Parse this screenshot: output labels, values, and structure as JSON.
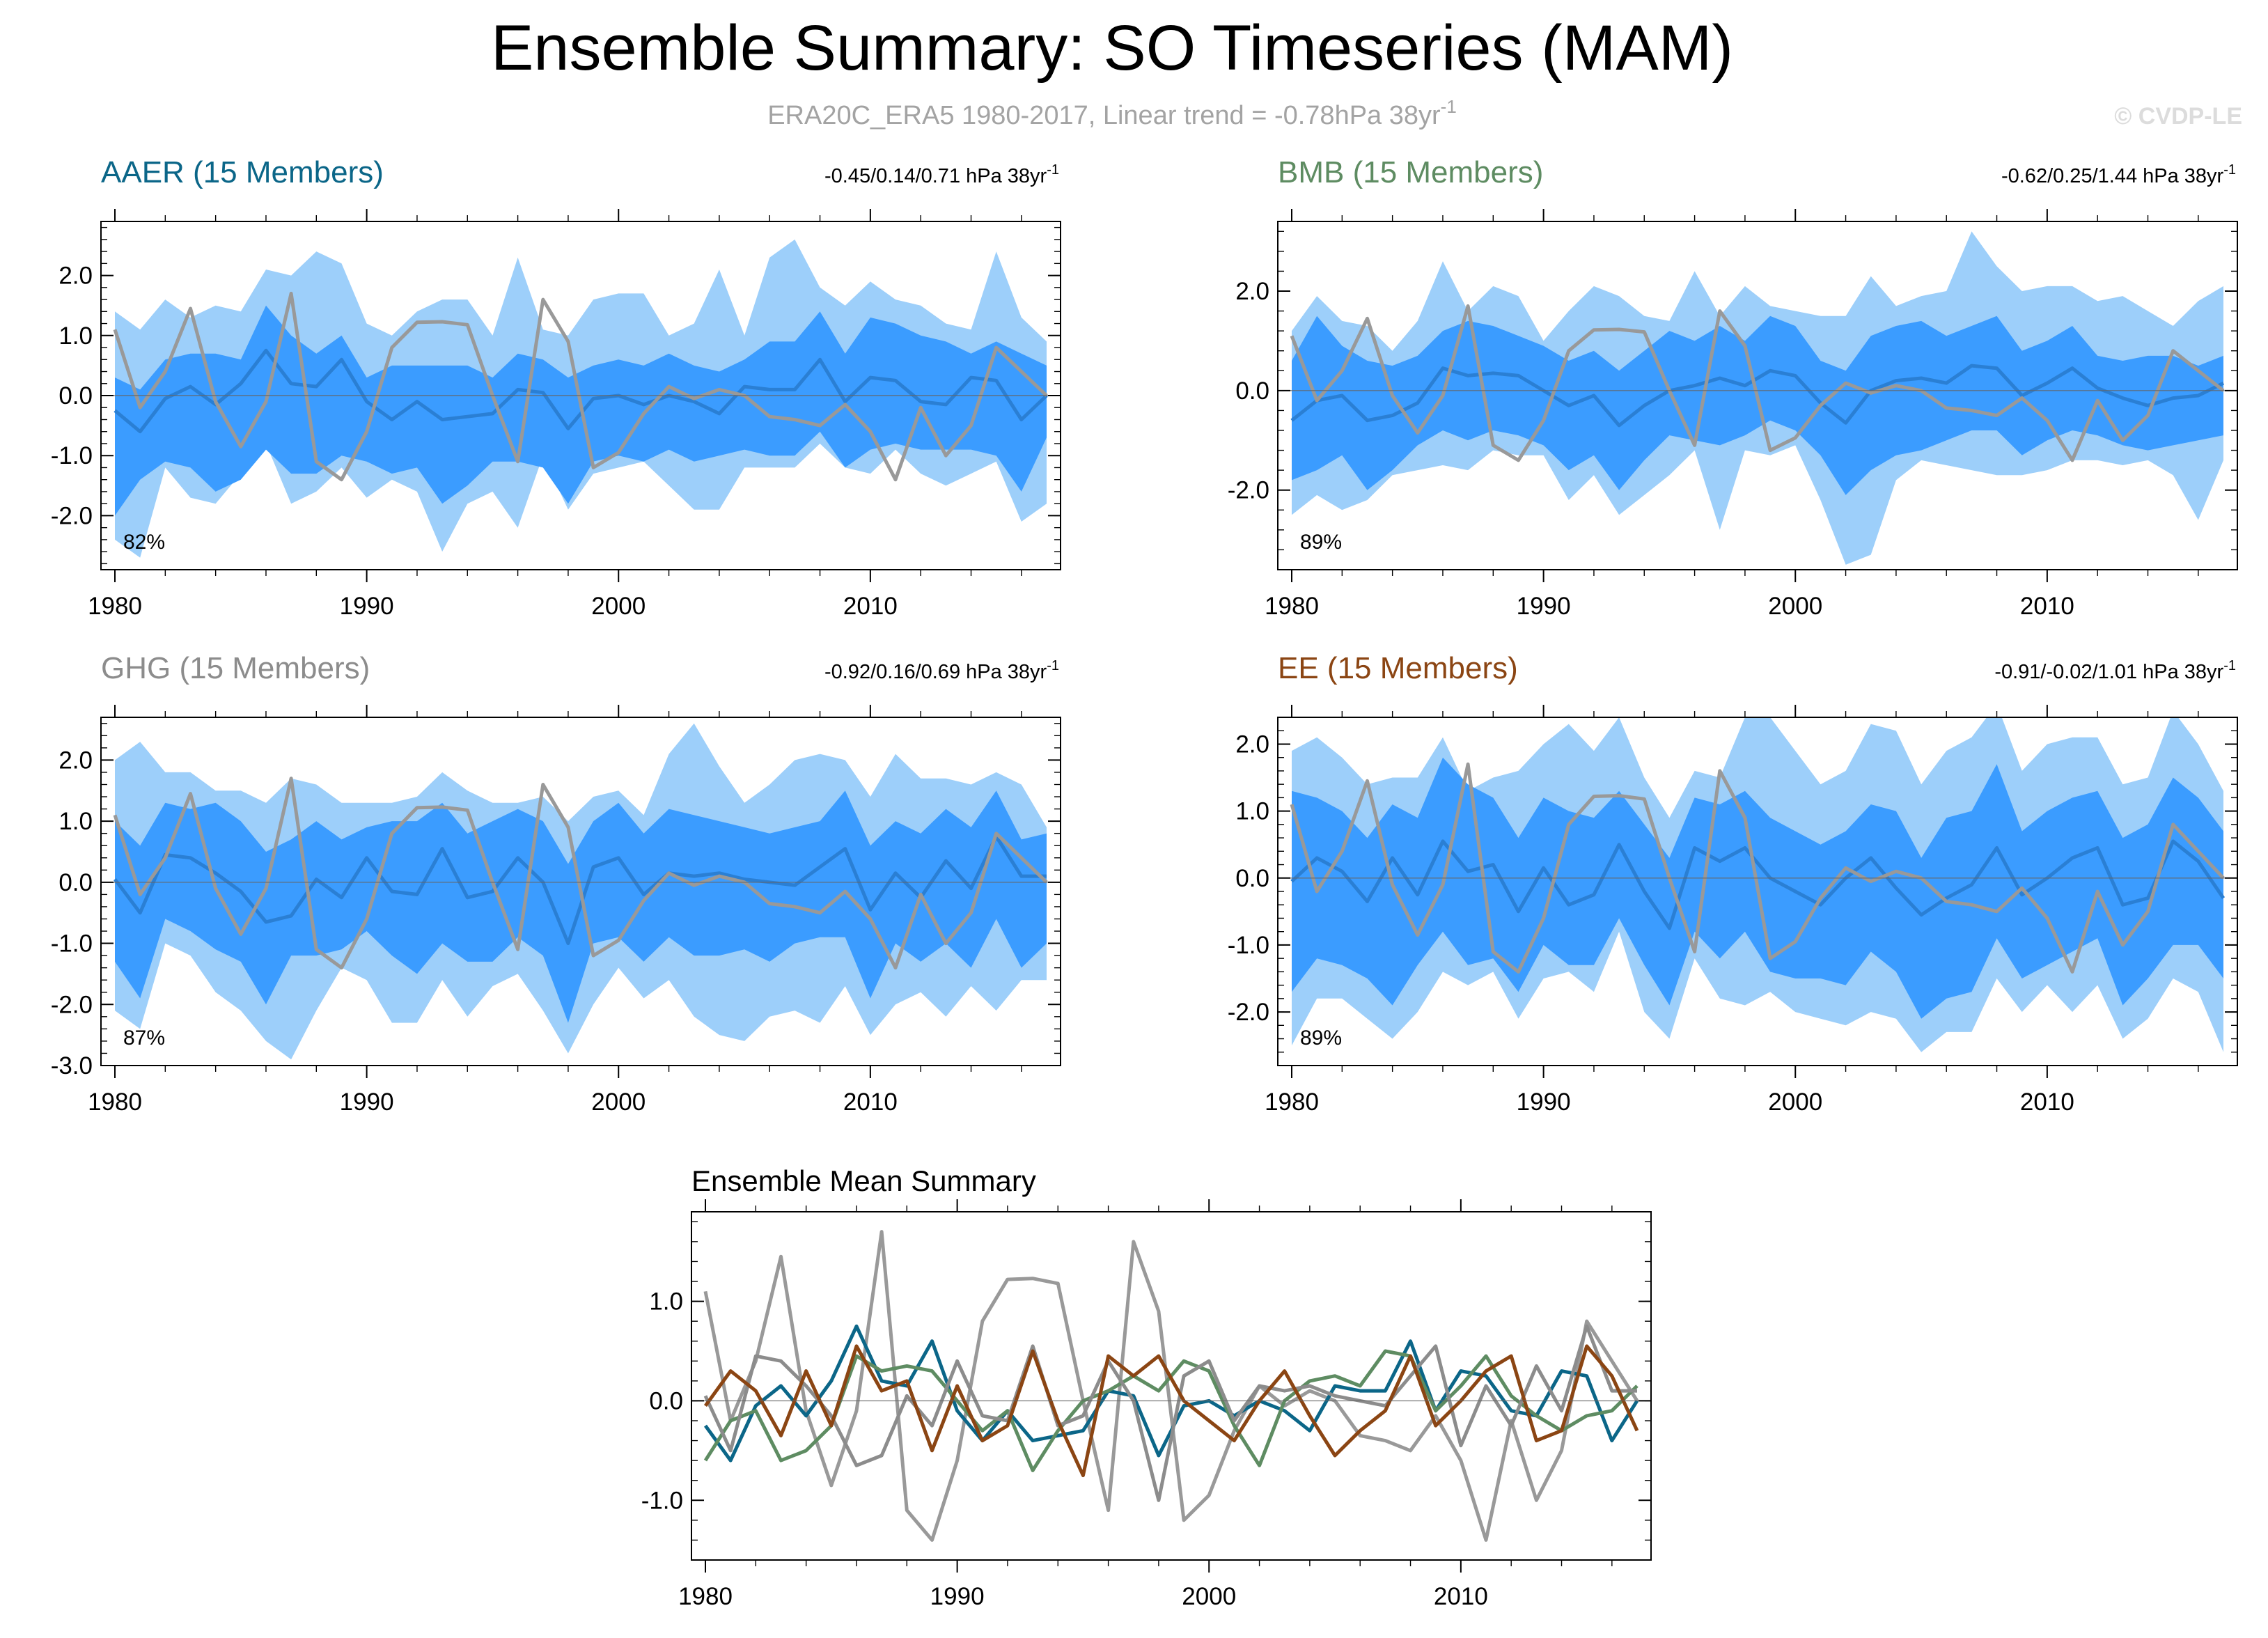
{
  "title": "Ensemble Summary: SO Timeseries (MAM)",
  "subtitle": {
    "text": "ERA20C_ERA5 1980-2017, Linear trend = -0.78hPa 38yr",
    "superscript": "-1"
  },
  "watermark": "© CVDP-LE",
  "colors": {
    "outer_band": "#9dcffa",
    "inner_band": "#3b9cff",
    "ens_mean_line": "#2a7fd4",
    "obs_line": "#999999",
    "AAER": "#0b6688",
    "BMB": "#5e8c62",
    "GHG": "#8c8c8c",
    "EE": "#8b4513"
  },
  "years": [
    1980,
    1981,
    1982,
    1983,
    1984,
    1985,
    1986,
    1987,
    1988,
    1989,
    1990,
    1991,
    1992,
    1993,
    1994,
    1995,
    1996,
    1997,
    1998,
    1999,
    2000,
    2001,
    2002,
    2003,
    2004,
    2005,
    2006,
    2007,
    2008,
    2009,
    2010,
    2011,
    2012,
    2013,
    2014,
    2015,
    2016,
    2017
  ],
  "observed": [
    1.1,
    -0.2,
    0.4,
    1.45,
    -0.1,
    -0.85,
    -0.1,
    1.7,
    -1.1,
    -1.4,
    -0.6,
    0.8,
    1.22,
    1.23,
    1.18,
    0.0,
    -1.1,
    1.6,
    0.9,
    -1.2,
    -0.95,
    -0.3,
    0.15,
    -0.05,
    0.1,
    0.0,
    -0.35,
    -0.4,
    -0.5,
    -0.15,
    -0.6,
    -1.4,
    -0.2,
    -1.0,
    -0.5,
    0.8,
    0.4,
    0.0
  ],
  "panels": [
    {
      "id": "AAER",
      "label": "AAER (15 Members)",
      "stats_text": "-0.45/0.14/0.71 hPa 38yr",
      "stats_sup": "-1",
      "percent": "82%",
      "ylim": [
        -2.9,
        2.9
      ],
      "yticks": [
        2.0,
        1.0,
        0.0,
        -1.0,
        -2.0
      ],
      "ytick_labels": [
        "2.0",
        "1.0",
        "0.0",
        "-1.0",
        "-2.0"
      ],
      "mean": [
        -0.25,
        -0.6,
        -0.05,
        0.15,
        -0.15,
        0.2,
        0.75,
        0.2,
        0.15,
        0.6,
        -0.1,
        -0.4,
        -0.1,
        -0.4,
        -0.35,
        -0.3,
        0.1,
        0.05,
        -0.55,
        -0.05,
        0.0,
        -0.15,
        0.0,
        -0.1,
        -0.3,
        0.15,
        0.1,
        0.1,
        0.6,
        -0.1,
        0.3,
        0.25,
        -0.1,
        -0.15,
        0.3,
        0.25,
        -0.4,
        0.0
      ],
      "p10": [
        -2.0,
        -1.4,
        -1.1,
        -1.2,
        -1.6,
        -1.4,
        -0.9,
        -1.3,
        -1.3,
        -1.0,
        -1.1,
        -1.3,
        -1.2,
        -1.8,
        -1.5,
        -1.1,
        -1.1,
        -1.2,
        -1.8,
        -1.1,
        -1.0,
        -1.1,
        -0.9,
        -1.1,
        -1.0,
        -0.9,
        -1.0,
        -1.0,
        -0.6,
        -1.2,
        -0.9,
        -0.8,
        -0.9,
        -0.9,
        -0.9,
        -1.0,
        -1.6,
        -0.7
      ],
      "p90": [
        0.3,
        0.1,
        0.6,
        0.7,
        0.7,
        0.6,
        1.5,
        1.0,
        0.7,
        1.0,
        0.3,
        0.5,
        0.5,
        0.5,
        0.5,
        0.3,
        0.7,
        0.6,
        0.3,
        0.5,
        0.6,
        0.5,
        0.7,
        0.5,
        0.4,
        0.6,
        0.9,
        0.9,
        1.4,
        0.7,
        1.3,
        1.2,
        1.0,
        0.9,
        0.7,
        0.9,
        0.7,
        0.5
      ],
      "min": [
        -2.4,
        -2.7,
        -1.2,
        -1.7,
        -1.8,
        -1.3,
        -0.8,
        -1.8,
        -1.6,
        -1.2,
        -1.7,
        -1.4,
        -1.6,
        -2.6,
        -1.8,
        -1.6,
        -2.2,
        -1.0,
        -1.9,
        -1.3,
        -1.2,
        -1.1,
        -1.5,
        -1.9,
        -1.9,
        -1.2,
        -1.2,
        -1.2,
        -0.8,
        -1.2,
        -1.3,
        -0.9,
        -1.3,
        -1.5,
        -1.3,
        -1.1,
        -2.1,
        -1.8
      ],
      "max": [
        1.4,
        1.1,
        1.6,
        1.3,
        1.5,
        1.4,
        2.1,
        2.0,
        2.4,
        2.2,
        1.2,
        1.0,
        1.4,
        1.6,
        1.6,
        1.0,
        2.3,
        1.1,
        1.0,
        1.6,
        1.7,
        1.7,
        1.0,
        1.2,
        2.1,
        1.0,
        2.3,
        2.6,
        1.8,
        1.5,
        1.9,
        1.6,
        1.5,
        1.2,
        1.1,
        2.4,
        1.3,
        0.9
      ]
    },
    {
      "id": "BMB",
      "label": "BMB (15 Members)",
      "stats_text": "-0.62/0.25/1.44 hPa 38yr",
      "stats_sup": "-1",
      "percent": "89%",
      "ylim": [
        -3.6,
        3.4
      ],
      "yticks": [
        2.0,
        0.0,
        -2.0
      ],
      "ytick_labels": [
        "2.0",
        "0.0",
        "-2.0"
      ],
      "mean": [
        -0.6,
        -0.2,
        -0.1,
        -0.6,
        -0.5,
        -0.25,
        0.45,
        0.3,
        0.35,
        0.3,
        0.0,
        -0.3,
        -0.1,
        -0.7,
        -0.3,
        0.0,
        0.1,
        0.25,
        0.1,
        0.4,
        0.3,
        -0.25,
        -0.65,
        0.0,
        0.2,
        0.25,
        0.15,
        0.5,
        0.45,
        -0.1,
        0.15,
        0.45,
        0.05,
        -0.15,
        -0.3,
        -0.15,
        -0.1,
        0.15
      ],
      "p10": [
        -1.8,
        -1.6,
        -1.3,
        -2.0,
        -1.6,
        -1.1,
        -0.8,
        -1.0,
        -0.8,
        -0.9,
        -1.1,
        -1.6,
        -1.3,
        -2.0,
        -1.4,
        -0.9,
        -1.0,
        -1.1,
        -0.9,
        -0.6,
        -0.8,
        -1.3,
        -2.1,
        -1.6,
        -1.3,
        -1.2,
        -1.0,
        -0.8,
        -0.8,
        -1.3,
        -1.0,
        -0.8,
        -0.9,
        -1.1,
        -1.2,
        -1.1,
        -1.0,
        -0.9
      ],
      "p90": [
        0.6,
        1.5,
        0.9,
        0.6,
        0.5,
        0.7,
        1.2,
        1.4,
        1.3,
        1.1,
        0.9,
        0.6,
        0.8,
        0.4,
        0.8,
        1.2,
        1.0,
        1.3,
        1.0,
        1.5,
        1.3,
        0.6,
        0.4,
        1.1,
        1.3,
        1.4,
        1.1,
        1.3,
        1.5,
        0.8,
        1.0,
        1.3,
        0.7,
        0.6,
        0.7,
        0.7,
        0.5,
        0.7
      ],
      "min": [
        -2.5,
        -2.1,
        -2.4,
        -2.2,
        -1.7,
        -1.6,
        -1.5,
        -1.6,
        -1.2,
        -1.3,
        -1.3,
        -2.2,
        -1.7,
        -2.5,
        -2.1,
        -1.7,
        -1.2,
        -2.8,
        -1.2,
        -1.3,
        -1.1,
        -2.2,
        -3.5,
        -3.3,
        -1.8,
        -1.4,
        -1.5,
        -1.6,
        -1.7,
        -1.7,
        -1.6,
        -1.4,
        -1.4,
        -1.5,
        -1.4,
        -1.7,
        -2.6,
        -1.4
      ],
      "max": [
        1.2,
        1.9,
        1.4,
        1.3,
        0.8,
        1.4,
        2.6,
        1.6,
        2.1,
        1.9,
        1.0,
        1.6,
        2.1,
        1.9,
        1.5,
        1.4,
        2.4,
        1.5,
        2.1,
        1.7,
        1.6,
        1.5,
        1.5,
        2.3,
        1.7,
        1.9,
        2.0,
        3.2,
        2.5,
        2.0,
        2.1,
        2.1,
        1.8,
        1.9,
        1.6,
        1.3,
        1.8,
        2.1
      ]
    },
    {
      "id": "GHG",
      "label": "GHG (15 Members)",
      "stats_text": "-0.92/0.16/0.69 hPa 38yr",
      "stats_sup": "-1",
      "percent": "87%",
      "ylim": [
        -3.0,
        2.7
      ],
      "yticks": [
        2.0,
        1.0,
        0.0,
        -1.0,
        -2.0,
        -3.0
      ],
      "ytick_labels": [
        "2.0",
        "1.0",
        "0.0",
        "-1.0",
        "-2.0",
        "-3.0"
      ],
      "mean": [
        0.05,
        -0.5,
        0.45,
        0.4,
        0.15,
        -0.15,
        -0.65,
        -0.55,
        0.05,
        -0.25,
        0.4,
        -0.15,
        -0.2,
        0.55,
        -0.25,
        -0.15,
        0.4,
        0.0,
        -1.0,
        0.25,
        0.4,
        -0.2,
        0.15,
        0.1,
        0.15,
        0.05,
        0.0,
        -0.05,
        0.25,
        0.55,
        -0.45,
        0.15,
        -0.25,
        0.35,
        -0.1,
        0.75,
        0.1,
        0.1
      ],
      "p10": [
        -1.3,
        -1.9,
        -0.6,
        -0.8,
        -1.1,
        -1.3,
        -2.0,
        -1.2,
        -1.2,
        -1.1,
        -0.8,
        -1.2,
        -1.5,
        -1.0,
        -1.3,
        -1.3,
        -0.9,
        -1.2,
        -2.3,
        -1.0,
        -0.9,
        -1.3,
        -0.9,
        -1.2,
        -1.2,
        -1.1,
        -1.3,
        -1.0,
        -0.9,
        -0.9,
        -1.9,
        -1.0,
        -1.3,
        -1.0,
        -1.4,
        -0.6,
        -1.4,
        -1.0
      ],
      "p90": [
        1.0,
        0.6,
        1.3,
        1.2,
        1.3,
        1.0,
        0.5,
        0.7,
        1.0,
        0.7,
        0.9,
        1.0,
        1.0,
        1.3,
        0.8,
        1.0,
        1.2,
        1.0,
        0.3,
        1.0,
        1.3,
        0.8,
        1.2,
        1.1,
        1.0,
        0.9,
        0.8,
        0.9,
        1.0,
        1.5,
        0.6,
        1.0,
        0.8,
        1.2,
        0.9,
        1.5,
        0.7,
        0.8
      ],
      "min": [
        -2.1,
        -2.4,
        -1.0,
        -1.2,
        -1.8,
        -2.1,
        -2.6,
        -2.9,
        -2.1,
        -1.4,
        -1.6,
        -2.3,
        -2.3,
        -1.6,
        -2.2,
        -1.7,
        -1.5,
        -2.1,
        -2.8,
        -2.0,
        -1.4,
        -1.9,
        -1.6,
        -2.2,
        -2.5,
        -2.6,
        -2.2,
        -2.1,
        -2.3,
        -1.7,
        -2.5,
        -2.0,
        -1.8,
        -2.2,
        -1.7,
        -2.1,
        -1.6,
        -1.6
      ],
      "max": [
        2.0,
        2.3,
        1.8,
        1.8,
        1.5,
        1.5,
        1.3,
        1.7,
        1.6,
        1.3,
        1.3,
        1.3,
        1.4,
        1.8,
        1.5,
        1.3,
        1.3,
        1.4,
        1.0,
        1.4,
        1.5,
        1.1,
        2.1,
        2.6,
        1.9,
        1.3,
        1.6,
        2.0,
        2.1,
        2.0,
        1.4,
        2.1,
        1.7,
        1.7,
        1.6,
        1.8,
        1.6,
        0.9
      ]
    },
    {
      "id": "EE",
      "label": "EE (15 Members)",
      "stats_text": "-0.91/-0.02/1.01 hPa 38yr",
      "stats_sup": "-1",
      "percent": "89%",
      "ylim": [
        -2.8,
        2.4
      ],
      "yticks": [
        2.0,
        1.0,
        0.0,
        -1.0,
        -2.0
      ],
      "ytick_labels": [
        "2.0",
        "1.0",
        "0.0",
        "-1.0",
        "-2.0"
      ],
      "mean": [
        -0.05,
        0.3,
        0.1,
        -0.35,
        0.3,
        -0.25,
        0.55,
        0.1,
        0.2,
        -0.5,
        0.15,
        -0.4,
        -0.25,
        0.5,
        -0.2,
        -0.75,
        0.45,
        0.25,
        0.45,
        0.0,
        -0.2,
        -0.4,
        0.0,
        0.3,
        -0.15,
        -0.55,
        -0.3,
        -0.1,
        0.45,
        -0.25,
        0.0,
        0.3,
        0.45,
        -0.4,
        -0.3,
        0.55,
        0.25,
        -0.3
      ],
      "p10": [
        -1.7,
        -1.2,
        -1.3,
        -1.5,
        -1.9,
        -1.3,
        -0.8,
        -1.3,
        -1.2,
        -1.7,
        -1.0,
        -1.3,
        -1.3,
        -0.6,
        -1.3,
        -1.9,
        -0.8,
        -1.2,
        -0.8,
        -1.4,
        -1.5,
        -1.5,
        -1.6,
        -1.1,
        -1.4,
        -2.1,
        -1.8,
        -1.7,
        -0.9,
        -1.5,
        -1.3,
        -1.1,
        -0.9,
        -1.9,
        -1.5,
        -1.0,
        -1.0,
        -1.5
      ],
      "p90": [
        1.3,
        1.2,
        1.0,
        0.6,
        1.1,
        0.9,
        1.8,
        1.4,
        1.2,
        0.6,
        1.2,
        1.0,
        0.9,
        1.3,
        0.8,
        0.3,
        1.2,
        1.1,
        1.3,
        0.9,
        0.7,
        0.5,
        0.7,
        1.1,
        1.0,
        0.3,
        0.9,
        1.0,
        1.7,
        0.7,
        1.0,
        1.2,
        1.3,
        0.6,
        0.8,
        1.5,
        1.2,
        0.7
      ],
      "min": [
        -2.5,
        -1.8,
        -1.8,
        -2.1,
        -2.4,
        -2.0,
        -1.4,
        -1.6,
        -1.4,
        -2.1,
        -1.5,
        -1.4,
        -1.7,
        -0.8,
        -2.0,
        -2.4,
        -1.2,
        -1.8,
        -1.9,
        -1.7,
        -2.0,
        -2.1,
        -2.2,
        -2.0,
        -2.1,
        -2.6,
        -2.3,
        -2.3,
        -1.5,
        -2.0,
        -1.6,
        -2.0,
        -1.6,
        -2.4,
        -2.1,
        -1.5,
        -1.7,
        -2.6
      ],
      "max": [
        1.9,
        2.1,
        1.8,
        1.4,
        1.5,
        1.5,
        2.1,
        1.3,
        1.5,
        1.6,
        2.0,
        2.3,
        1.9,
        2.4,
        1.5,
        0.9,
        1.6,
        1.5,
        2.4,
        2.4,
        1.9,
        1.4,
        1.6,
        2.3,
        2.2,
        1.4,
        1.9,
        2.1,
        2.6,
        1.6,
        2.0,
        2.1,
        2.1,
        1.4,
        1.5,
        2.5,
        2.0,
        1.3
      ]
    }
  ],
  "mean_summary": {
    "title": "Ensemble Mean Summary",
    "ylim": [
      -1.6,
      1.9
    ],
    "yticks": [
      1.0,
      0.0,
      -1.0
    ],
    "ytick_labels": [
      "1.0",
      "0.0",
      "-1.0"
    ]
  },
  "xticks": [
    1980,
    1990,
    2000,
    2010
  ],
  "xtick_labels": [
    "1980",
    "1990",
    "2000",
    "2010"
  ]
}
